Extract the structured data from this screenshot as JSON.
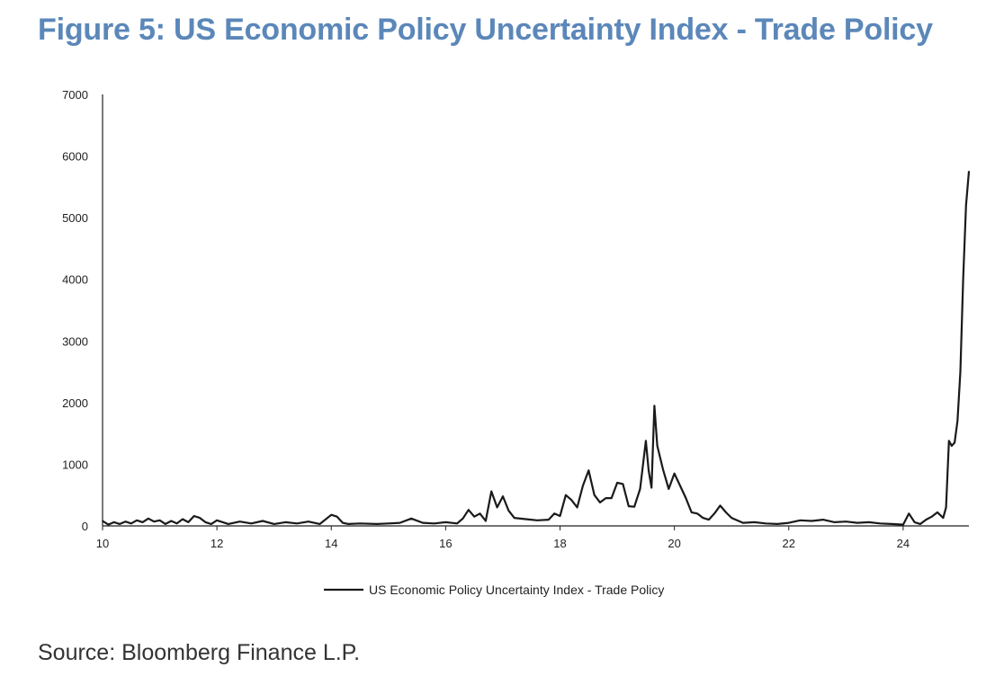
{
  "title": "Figure 5: US Economic Policy Uncertainty Index - Trade Policy",
  "source": "Source: Bloomberg Finance L.P.",
  "colors": {
    "title": "#5b87b9",
    "line": "#1a1a1a",
    "axis": "#222222"
  },
  "chart_data": {
    "type": "line",
    "title": "Figure 5: US Economic Policy Uncertainty Index - Trade Policy",
    "xlabel": "",
    "ylabel": "",
    "xlim": [
      10,
      25.15
    ],
    "ylim": [
      0,
      7000
    ],
    "x_ticks": [
      10,
      12,
      14,
      16,
      18,
      20,
      22,
      24
    ],
    "x_tick_labels": [
      "10",
      "12",
      "14",
      "16",
      "18",
      "20",
      "22",
      "24"
    ],
    "y_ticks": [
      0,
      1000,
      2000,
      3000,
      4000,
      5000,
      6000,
      7000
    ],
    "y_tick_labels": [
      "0",
      "1000",
      "2000",
      "3000",
      "4000",
      "5000",
      "6000",
      "7000"
    ],
    "grid": false,
    "legend_position": "bottom-center",
    "series": [
      {
        "name": "US Economic Policy Uncertainty Index - Trade Policy",
        "x": [
          10.0,
          10.1,
          10.2,
          10.3,
          10.4,
          10.5,
          10.6,
          10.7,
          10.8,
          10.9,
          11.0,
          11.1,
          11.2,
          11.3,
          11.4,
          11.5,
          11.6,
          11.7,
          11.8,
          11.9,
          12.0,
          12.2,
          12.4,
          12.6,
          12.8,
          13.0,
          13.2,
          13.4,
          13.6,
          13.8,
          14.0,
          14.1,
          14.2,
          14.3,
          14.5,
          14.8,
          15.0,
          15.2,
          15.4,
          15.6,
          15.8,
          16.0,
          16.2,
          16.3,
          16.4,
          16.5,
          16.6,
          16.7,
          16.8,
          16.9,
          17.0,
          17.1,
          17.2,
          17.4,
          17.6,
          17.8,
          17.9,
          18.0,
          18.1,
          18.2,
          18.3,
          18.4,
          18.5,
          18.6,
          18.7,
          18.8,
          18.9,
          19.0,
          19.1,
          19.2,
          19.3,
          19.4,
          19.5,
          19.55,
          19.6,
          19.65,
          19.7,
          19.8,
          19.9,
          20.0,
          20.1,
          20.2,
          20.3,
          20.4,
          20.5,
          20.6,
          20.7,
          20.8,
          20.9,
          21.0,
          21.2,
          21.4,
          21.6,
          21.8,
          22.0,
          22.2,
          22.4,
          22.6,
          22.8,
          23.0,
          23.2,
          23.4,
          23.6,
          23.8,
          24.0,
          24.1,
          24.2,
          24.3,
          24.4,
          24.5,
          24.6,
          24.7,
          24.75,
          24.8,
          24.85,
          24.9,
          24.95,
          25.0,
          25.05,
          25.1,
          25.15
        ],
        "values": [
          80,
          20,
          60,
          30,
          70,
          40,
          90,
          60,
          120,
          70,
          90,
          30,
          80,
          40,
          110,
          60,
          160,
          130,
          60,
          30,
          90,
          30,
          70,
          40,
          80,
          30,
          60,
          40,
          70,
          30,
          180,
          150,
          50,
          30,
          40,
          30,
          40,
          50,
          120,
          50,
          40,
          60,
          40,
          120,
          260,
          150,
          200,
          80,
          560,
          300,
          480,
          250,
          130,
          110,
          90,
          100,
          200,
          160,
          500,
          420,
          300,
          650,
          900,
          500,
          380,
          450,
          450,
          700,
          680,
          320,
          310,
          600,
          1380,
          900,
          620,
          1950,
          1300,
          920,
          600,
          850,
          650,
          450,
          220,
          200,
          130,
          100,
          200,
          330,
          220,
          130,
          50,
          60,
          40,
          30,
          50,
          90,
          80,
          100,
          60,
          70,
          50,
          60,
          40,
          30,
          20,
          200,
          60,
          30,
          100,
          150,
          220,
          130,
          300,
          1380,
          1300,
          1350,
          1700,
          2500,
          4000,
          5200,
          5750
        ]
      }
    ]
  }
}
